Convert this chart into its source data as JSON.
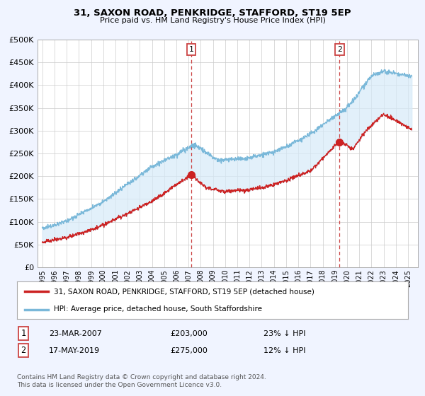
{
  "title": "31, SAXON ROAD, PENKRIDGE, STAFFORD, ST19 5EP",
  "subtitle": "Price paid vs. HM Land Registry's House Price Index (HPI)",
  "ylim": [
    0,
    500000
  ],
  "yticks": [
    0,
    50000,
    100000,
    150000,
    200000,
    250000,
    300000,
    350000,
    400000,
    450000,
    500000
  ],
  "ytick_labels": [
    "£0",
    "£50K",
    "£100K",
    "£150K",
    "£200K",
    "£250K",
    "£300K",
    "£350K",
    "£400K",
    "£450K",
    "£500K"
  ],
  "sale1_year": 2007.22,
  "sale1_price": 203000,
  "sale1_label": "1",
  "sale1_date": "23-MAR-2007",
  "sale1_price_str": "£203,000",
  "sale1_pct": "23% ↓ HPI",
  "sale2_year": 2019.38,
  "sale2_price": 275000,
  "sale2_label": "2",
  "sale2_date": "17-MAY-2019",
  "sale2_price_str": "£275,000",
  "sale2_pct": "12% ↓ HPI",
  "hpi_color": "#7ab8d9",
  "price_color": "#cc2222",
  "fill_color": "#d6eaf8",
  "vline_color": "#cc4444",
  "marker_color": "#cc2222",
  "legend_label_price": "31, SAXON ROAD, PENKRIDGE, STAFFORD, ST19 5EP (detached house)",
  "legend_label_hpi": "HPI: Average price, detached house, South Staffordshire",
  "footnote": "Contains HM Land Registry data © Crown copyright and database right 2024.\nThis data is licensed under the Open Government Licence v3.0.",
  "background_color": "#f0f4ff",
  "plot_bg_color": "#ffffff"
}
